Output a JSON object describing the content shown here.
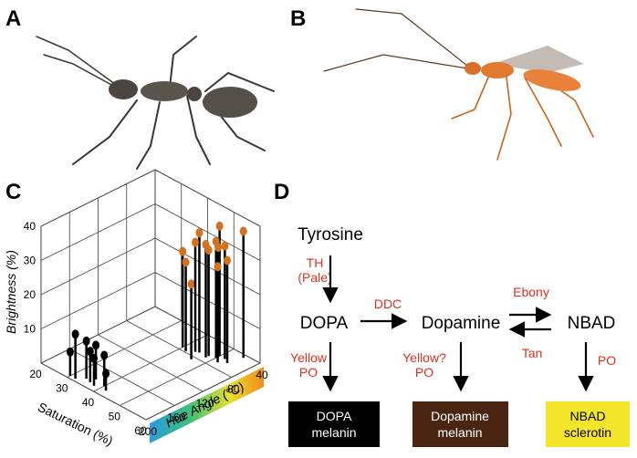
{
  "panel_labels": [
    "A",
    "B",
    "C",
    "D"
  ],
  "chart_data": {
    "type": "scatter3d",
    "xlabel": "Saturation (%)",
    "ylabel": "Hue Angle (°C)",
    "zlabel": "Brightness (%)",
    "xlim": [
      20,
      60
    ],
    "xticks": [
      20,
      30,
      40,
      50,
      60
    ],
    "ylim": [
      200,
      40
    ],
    "yticks": [
      200,
      160,
      120,
      80,
      40
    ],
    "zlim": [
      0,
      40
    ],
    "zticks": [
      10,
      20,
      30,
      40
    ],
    "series": [
      {
        "color": "#000000",
        "x": [
          34,
          36,
          38,
          32,
          40,
          42,
          36,
          30
        ],
        "y": [
          188,
          190,
          192,
          196,
          185,
          190,
          182,
          196
        ],
        "values": [
          11,
          9,
          8,
          13,
          9,
          5,
          10,
          7
        ]
      },
      {
        "color": "#d4711f",
        "x": [
          50,
          55,
          45,
          48,
          50,
          52,
          40,
          42,
          46,
          48,
          50,
          52,
          54,
          44
        ],
        "y": [
          60,
          45,
          70,
          72,
          65,
          60,
          75,
          78,
          85,
          68,
          62,
          70,
          64,
          72
        ],
        "values": [
          38,
          37,
          35,
          33,
          34,
          33,
          28,
          26,
          22,
          31,
          32,
          28,
          30,
          32
        ]
      }
    ]
  },
  "pathway": {
    "nodes": [
      "Tyrosine",
      "DOPA",
      "Dopamine",
      "NBAD"
    ],
    "enzymes": [
      [
        "TH",
        "(Pale)"
      ],
      [
        "DDC"
      ],
      [
        "Ebony"
      ],
      [
        "Tan"
      ],
      [
        "Yellow",
        "PO"
      ],
      [
        "Yellow?",
        "PO"
      ],
      [
        "PO"
      ]
    ],
    "products": [
      [
        "DOPA",
        "melanin"
      ],
      [
        "Dopamine",
        "melanin"
      ],
      [
        "NBAD",
        "sclerotin"
      ]
    ]
  }
}
